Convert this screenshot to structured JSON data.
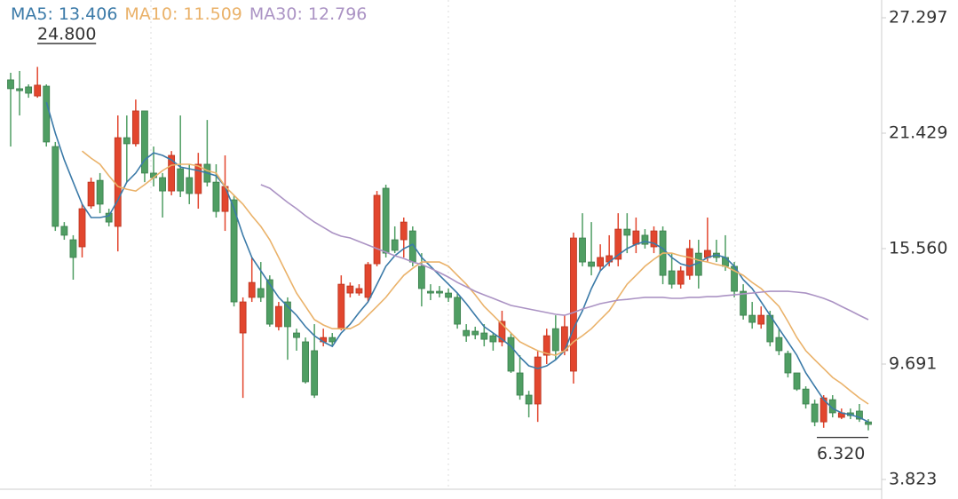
{
  "chart_data": {
    "type": "candlestick",
    "up_color": "#e2462e",
    "down_color": "#4f9e63",
    "open": [
      24.14,
      23.69,
      23.78,
      23.32,
      23.82,
      20.75,
      16.69,
      16.01,
      15.65,
      17.73,
      19.03,
      17.36,
      16.69,
      21.2,
      20.89,
      22.56,
      19.4,
      19.17,
      18.49,
      19.62,
      19.17,
      18.36,
      19.85,
      18.94,
      17.45,
      18.04,
      11.27,
      13.08,
      13.53,
      13.98,
      11.59,
      12.85,
      11.27,
      10.82,
      10.37,
      10.82,
      11.04,
      11.49,
      13.3,
      13.3,
      13.08,
      14.79,
      18.63,
      16.01,
      16.01,
      16.46,
      14.66,
      13.39,
      13.39,
      13.3,
      13.08,
      11.4,
      11.36,
      11.27,
      11.13,
      10.82,
      11.04,
      9.24,
      8.11,
      7.66,
      10.14,
      11.49,
      10.37,
      9.33,
      16.1,
      14.88,
      14.66,
      14.88,
      15.02,
      16.55,
      15.78,
      16.24,
      15.65,
      16.46,
      14.43,
      13.75,
      14.2,
      15.33,
      15.11,
      15.33,
      15.11,
      14.66,
      13.39,
      12.17,
      11.72,
      12.17,
      11.04,
      10.23,
      9.24,
      8.42,
      7.66,
      6.75,
      7.88,
      6.98,
      7.21,
      7.3,
      6.75
    ],
    "high": [
      24.5,
      24.59,
      23.91,
      24.8,
      23.91,
      20.98,
      16.91,
      16.24,
      17.82,
      19.17,
      19.4,
      17.59,
      22.33,
      22.33,
      23.14,
      22.56,
      20.75,
      19.4,
      20.52,
      22.33,
      19.85,
      20.43,
      22.1,
      19.85,
      20.3,
      18.27,
      13.08,
      15.11,
      14.88,
      14.2,
      12.85,
      13.08,
      11.49,
      11.04,
      11.72,
      11.49,
      11.27,
      14.2,
      13.84,
      13.75,
      14.88,
      18.49,
      18.81,
      16.69,
      17.14,
      16.69,
      15.33,
      13.75,
      13.66,
      13.53,
      13.3,
      11.72,
      11.59,
      11.72,
      11.27,
      12.4,
      11.27,
      10.14,
      8.33,
      10.37,
      11.49,
      12.17,
      12.17,
      16.37,
      17.36,
      16.91,
      15.78,
      16.24,
      17.36,
      17.36,
      17.14,
      16.55,
      16.69,
      16.69,
      15.33,
      14.66,
      16.01,
      16.01,
      17.14,
      16.01,
      16.24,
      14.88,
      13.75,
      12.85,
      12.62,
      12.4,
      11.49,
      10.37,
      9.24,
      8.56,
      7.88,
      8.11,
      8.11,
      7.43,
      7.43,
      7.66,
      6.89
    ],
    "low": [
      20.75,
      22.33,
      23.23,
      23.23,
      20.75,
      16.46,
      16.01,
      13.98,
      15.11,
      17.59,
      17.36,
      16.69,
      15.42,
      18.94,
      20.75,
      18.94,
      18.72,
      17.14,
      18.27,
      18.18,
      17.82,
      17.59,
      18.72,
      17.14,
      16.46,
      12.62,
      7.97,
      12.85,
      12.85,
      11.59,
      11.4,
      9.91,
      10.37,
      8.7,
      7.97,
      10.59,
      10.59,
      11.4,
      13.08,
      13.17,
      12.85,
      14.66,
      15.11,
      15.33,
      15.11,
      14.66,
      12.62,
      12.94,
      13.08,
      12.85,
      11.49,
      10.82,
      10.95,
      10.59,
      10.37,
      10.59,
      9.24,
      7.88,
      6.98,
      6.75,
      9.69,
      9.91,
      10.14,
      8.7,
      14.66,
      14.2,
      14.43,
      14.66,
      14.66,
      15.33,
      15.33,
      15.56,
      15.33,
      13.75,
      13.53,
      13.53,
      13.98,
      13.53,
      14.88,
      14.88,
      14.43,
      13.08,
      11.95,
      11.49,
      11.49,
      10.59,
      10.14,
      9.01,
      8.33,
      7.43,
      6.53,
      6.45,
      6.98,
      6.89,
      6.89,
      6.75,
      6.32
    ],
    "close": [
      23.69,
      23.59,
      23.46,
      23.87,
      20.98,
      16.69,
      16.24,
      15.11,
      17.59,
      18.94,
      17.82,
      16.91,
      21.2,
      20.89,
      22.56,
      19.4,
      19.17,
      18.49,
      20.3,
      18.49,
      18.36,
      19.85,
      18.94,
      17.45,
      18.72,
      12.85,
      12.85,
      13.84,
      13.08,
      11.72,
      12.62,
      11.59,
      11.04,
      8.79,
      8.11,
      11.04,
      10.82,
      13.75,
      13.66,
      13.53,
      14.75,
      18.27,
      15.33,
      15.47,
      16.91,
      14.88,
      13.53,
      13.3,
      13.3,
      13.08,
      11.72,
      11.13,
      11.18,
      10.95,
      10.82,
      11.86,
      9.33,
      8.11,
      7.66,
      10.05,
      11.13,
      10.37,
      11.59,
      16.1,
      14.88,
      14.66,
      15.11,
      15.2,
      16.55,
      16.24,
      16.46,
      15.78,
      16.46,
      14.2,
      13.75,
      14.43,
      15.56,
      14.2,
      15.47,
      15.11,
      14.66,
      13.39,
      12.17,
      11.81,
      12.17,
      10.82,
      10.37,
      9.24,
      8.42,
      7.66,
      6.75,
      7.97,
      7.21,
      7.21,
      7.07,
      6.89,
      6.62
    ],
    "series": [
      {
        "label": "MA5: 13.406",
        "color": "#3b7aa8",
        "values": [
          null,
          null,
          null,
          null,
          23.01,
          21.43,
          20.07,
          18.94,
          17.82,
          17.14,
          17.14,
          17.23,
          18.04,
          18.94,
          19.4,
          20.07,
          20.43,
          20.3,
          20.07,
          19.71,
          19.62,
          19.53,
          19.4,
          19.26,
          18.72,
          17.59,
          16.24,
          15.11,
          14.43,
          13.75,
          13.08,
          12.62,
          12.17,
          11.59,
          11.13,
          10.82,
          10.59,
          11.27,
          11.72,
          12.31,
          12.85,
          13.75,
          14.66,
          15.2,
          15.56,
          15.78,
          15.11,
          14.66,
          14.2,
          13.75,
          13.3,
          12.76,
          12.17,
          11.59,
          11.27,
          10.95,
          10.59,
          10.05,
          9.6,
          9.46,
          9.6,
          9.91,
          10.37,
          11.49,
          12.4,
          13.53,
          14.43,
          14.88,
          15.24,
          15.56,
          15.78,
          15.92,
          15.83,
          15.56,
          15.11,
          14.79,
          14.66,
          14.84,
          15.11,
          15.24,
          15.11,
          14.66,
          13.98,
          13.53,
          12.85,
          12.17,
          11.49,
          10.82,
          10.14,
          9.24,
          8.56,
          7.88,
          7.43,
          7.21,
          7.12,
          6.98,
          6.75
        ]
      },
      {
        "label": "MA10: 11.509",
        "color": "#eab26a",
        "values": [
          null,
          null,
          null,
          null,
          null,
          null,
          null,
          null,
          20.52,
          20.16,
          19.85,
          19.26,
          18.72,
          18.58,
          18.49,
          18.81,
          19.17,
          19.53,
          19.8,
          19.85,
          19.85,
          19.76,
          19.53,
          19.4,
          18.72,
          18.27,
          17.82,
          17.23,
          16.69,
          16.01,
          15.11,
          14.2,
          13.3,
          12.62,
          11.95,
          11.68,
          11.49,
          11.49,
          11.49,
          11.72,
          12.17,
          12.62,
          13.08,
          13.66,
          14.2,
          14.56,
          14.88,
          14.88,
          14.88,
          14.66,
          14.2,
          13.75,
          13.21,
          12.62,
          12.17,
          11.72,
          11.27,
          10.82,
          10.59,
          10.37,
          10.23,
          10.14,
          10.37,
          10.82,
          11.13,
          11.49,
          11.95,
          12.4,
          13.08,
          13.75,
          14.2,
          14.66,
          15.02,
          15.33,
          15.33,
          15.2,
          15.11,
          14.97,
          14.88,
          14.75,
          14.66,
          14.43,
          14.2,
          13.84,
          13.53,
          13.08,
          12.62,
          11.86,
          11.04,
          10.37,
          9.91,
          9.46,
          9.01,
          8.7,
          8.33,
          7.97,
          7.66
        ]
      },
      {
        "label": "MA30: 12.796",
        "color": "#ab93c4",
        "values": [
          null,
          null,
          null,
          null,
          null,
          null,
          null,
          null,
          null,
          null,
          null,
          null,
          null,
          null,
          null,
          null,
          null,
          null,
          null,
          null,
          null,
          null,
          null,
          null,
          null,
          null,
          null,
          null,
          18.81,
          18.63,
          18.27,
          17.91,
          17.59,
          17.23,
          16.91,
          16.64,
          16.37,
          16.19,
          16.1,
          15.92,
          15.74,
          15.56,
          15.38,
          15.2,
          15.06,
          14.88,
          14.75,
          14.56,
          14.34,
          14.11,
          13.84,
          13.62,
          13.39,
          13.21,
          13.03,
          12.85,
          12.67,
          12.58,
          12.49,
          12.4,
          12.31,
          12.22,
          12.17,
          12.31,
          12.49,
          12.62,
          12.76,
          12.85,
          12.94,
          12.98,
          13.03,
          13.08,
          13.08,
          13.08,
          13.03,
          13.03,
          13.08,
          13.08,
          13.12,
          13.12,
          13.17,
          13.21,
          13.26,
          13.3,
          13.35,
          13.39,
          13.39,
          13.39,
          13.35,
          13.3,
          13.17,
          13.03,
          12.85,
          12.62,
          12.4,
          12.17,
          11.95
        ]
      }
    ],
    "max_label": {
      "value": 24.8,
      "label": "24.800"
    },
    "min_label": {
      "value": 6.32,
      "label": "6.320"
    },
    "ylim": [
      3.823,
      27.297
    ],
    "yticks": [
      27.297,
      21.429,
      {
        "value": 15.56,
        "label": "15.560"
      },
      9.691,
      3.823
    ]
  }
}
